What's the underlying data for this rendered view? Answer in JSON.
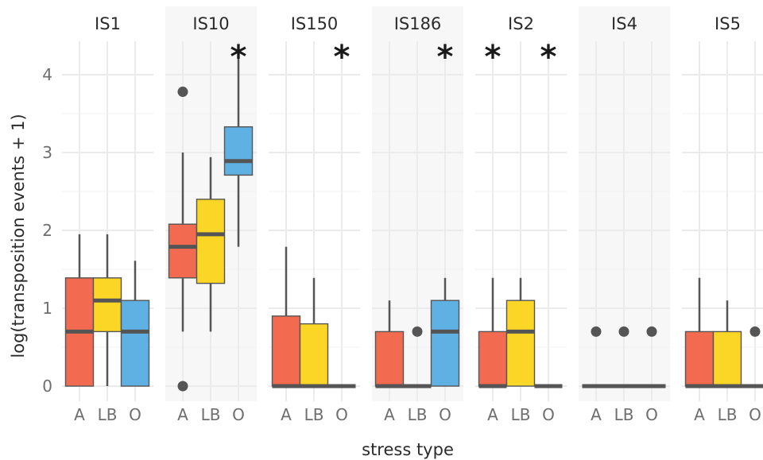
{
  "chart_data": {
    "type": "box",
    "xlabel": "stress type",
    "ylabel": "log(transposition events + 1)",
    "ylim": [
      -0.2,
      4.45
    ],
    "yticks": [
      0,
      1,
      2,
      3,
      4
    ],
    "categories": [
      "A",
      "LB",
      "O"
    ],
    "colors": {
      "A": "#f26b50",
      "LB": "#fcd626",
      "O": "#5fb0e3"
    },
    "facet_shading": [
      "#ffffff",
      "#f7f7f7",
      "#ffffff",
      "#f7f7f7",
      "#ffffff",
      "#f7f7f7",
      "#ffffff"
    ],
    "facets": [
      {
        "name": "IS1",
        "groups": [
          {
            "category": "A",
            "min": 0,
            "q1": 0,
            "median": 0.7,
            "q3": 1.39,
            "max": 1.95,
            "outliers": [],
            "significant": false
          },
          {
            "category": "LB",
            "min": 0,
            "q1": 0.7,
            "median": 1.1,
            "q3": 1.39,
            "max": 1.95,
            "outliers": [],
            "significant": false
          },
          {
            "category": "O",
            "min": 0,
            "q1": 0,
            "median": 0.7,
            "q3": 1.1,
            "max": 1.61,
            "outliers": [],
            "significant": false
          }
        ]
      },
      {
        "name": "IS10",
        "groups": [
          {
            "category": "A",
            "min": 0.7,
            "q1": 1.39,
            "median": 1.79,
            "q3": 2.08,
            "max": 3.0,
            "outliers": [
              3.78,
              0
            ],
            "significant": false
          },
          {
            "category": "LB",
            "min": 0.7,
            "q1": 1.32,
            "median": 1.95,
            "q3": 2.4,
            "max": 2.94,
            "outliers": [],
            "significant": false
          },
          {
            "category": "O",
            "min": 1.79,
            "q1": 2.71,
            "median": 2.89,
            "q3": 3.33,
            "max": 4.22,
            "outliers": [],
            "significant": true
          }
        ]
      },
      {
        "name": "IS150",
        "groups": [
          {
            "category": "A",
            "min": 0,
            "q1": 0,
            "median": 0,
            "q3": 0.9,
            "max": 1.79,
            "outliers": [],
            "significant": false
          },
          {
            "category": "LB",
            "min": 0,
            "q1": 0,
            "median": 0,
            "q3": 0.8,
            "max": 1.39,
            "outliers": [],
            "significant": false
          },
          {
            "category": "O",
            "min": 0,
            "q1": 0,
            "median": 0,
            "q3": 0,
            "max": 0,
            "outliers": [],
            "significant": true
          }
        ]
      },
      {
        "name": "IS186",
        "groups": [
          {
            "category": "A",
            "min": 0,
            "q1": 0,
            "median": 0,
            "q3": 0.7,
            "max": 1.1,
            "outliers": [],
            "significant": false
          },
          {
            "category": "LB",
            "min": 0,
            "q1": 0,
            "median": 0,
            "q3": 0,
            "max": 0,
            "outliers": [
              0.7
            ],
            "significant": false
          },
          {
            "category": "O",
            "min": 0,
            "q1": 0,
            "median": 0.7,
            "q3": 1.1,
            "max": 1.39,
            "outliers": [],
            "significant": true
          }
        ]
      },
      {
        "name": "IS2",
        "groups": [
          {
            "category": "A",
            "min": 0,
            "q1": 0,
            "median": 0,
            "q3": 0.7,
            "max": 1.39,
            "outliers": [],
            "significant": true
          },
          {
            "category": "LB",
            "min": 0,
            "q1": 0,
            "median": 0.7,
            "q3": 1.1,
            "max": 1.39,
            "outliers": [],
            "significant": false
          },
          {
            "category": "O",
            "min": 0,
            "q1": 0,
            "median": 0,
            "q3": 0,
            "max": 0,
            "outliers": [],
            "significant": true
          }
        ]
      },
      {
        "name": "IS4",
        "groups": [
          {
            "category": "A",
            "min": 0,
            "q1": 0,
            "median": 0,
            "q3": 0,
            "max": 0,
            "outliers": [
              0.7
            ],
            "significant": false
          },
          {
            "category": "LB",
            "min": 0,
            "q1": 0,
            "median": 0,
            "q3": 0,
            "max": 0,
            "outliers": [
              0.7
            ],
            "significant": false
          },
          {
            "category": "O",
            "min": 0,
            "q1": 0,
            "median": 0,
            "q3": 0,
            "max": 0,
            "outliers": [
              0.7
            ],
            "significant": false
          }
        ]
      },
      {
        "name": "IS5",
        "groups": [
          {
            "category": "A",
            "min": 0,
            "q1": 0,
            "median": 0,
            "q3": 0.7,
            "max": 1.39,
            "outliers": [],
            "significant": false
          },
          {
            "category": "LB",
            "min": 0,
            "q1": 0,
            "median": 0,
            "q3": 0.7,
            "max": 1.1,
            "outliers": [],
            "significant": false
          },
          {
            "category": "O",
            "min": 0,
            "q1": 0,
            "median": 0,
            "q3": 0,
            "max": 0,
            "outliers": [
              0.7
            ],
            "significant": false
          }
        ]
      }
    ],
    "significance_marker": "*",
    "grid": true,
    "legend": "none"
  }
}
